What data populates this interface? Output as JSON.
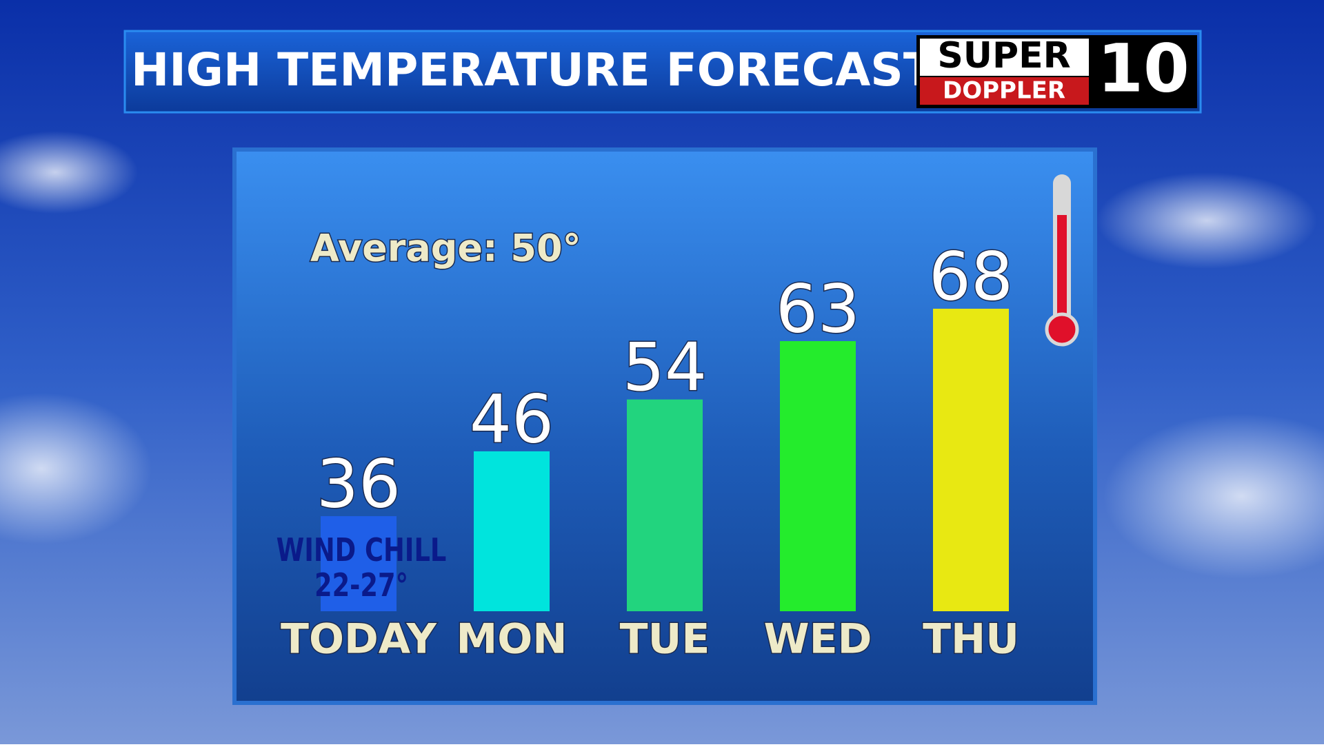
{
  "chart_data": {
    "type": "bar",
    "title": "HIGH TEMPERATURE FORECAST",
    "logo": {
      "top": "SUPER",
      "bottom": "DOPPLER",
      "number": "10"
    },
    "categories": [
      "TODAY",
      "MON",
      "TUE",
      "WED",
      "THU"
    ],
    "values": [
      36,
      46,
      54,
      63,
      68
    ],
    "colors": [
      "#1f5fe8",
      "#00e4dd",
      "#22d47e",
      "#24ec2c",
      "#e8e812"
    ],
    "annotations": {
      "average": "Average: 50°",
      "wind_chill": "WIND CHILL",
      "wind_chill_range": "22-27°"
    }
  }
}
